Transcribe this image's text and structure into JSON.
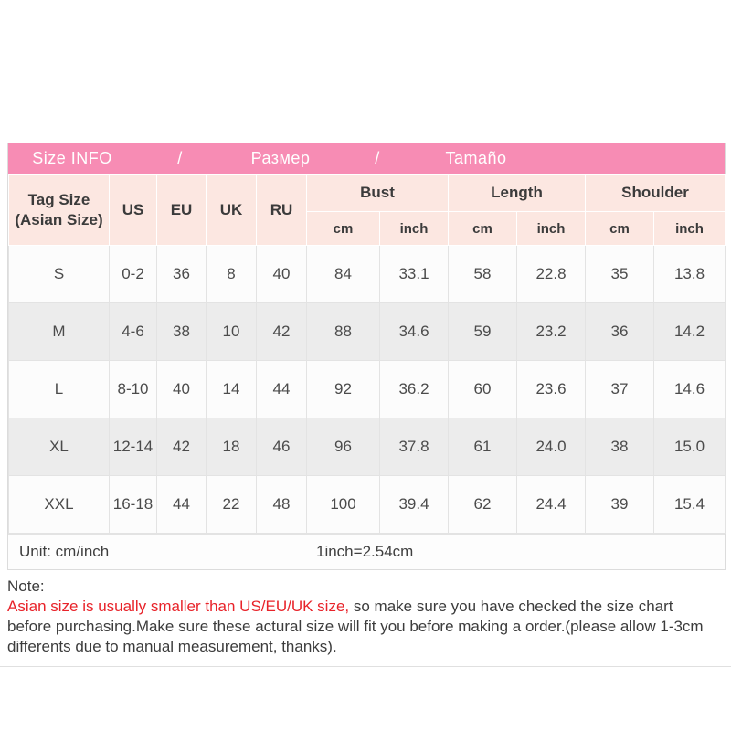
{
  "title_bar": {
    "size_info": "Size INFO",
    "separator_1": "/",
    "razmer": "Размер",
    "separator_2": "/",
    "tamano": "Tamaño"
  },
  "table": {
    "header": {
      "tag_size_line1": "Tag Size",
      "tag_size_line2": "(Asian Size)",
      "us": "US",
      "eu": "EU",
      "uk": "UK",
      "ru": "RU",
      "bust": "Bust",
      "length": "Length",
      "shoulder": "Shoulder",
      "cm": "cm",
      "inch": "inch"
    },
    "rows": [
      {
        "cells": [
          "S",
          "0-2",
          "36",
          "8",
          "40",
          "84",
          "33.1",
          "58",
          "22.8",
          "35",
          "13.8"
        ]
      },
      {
        "cells": [
          "M",
          "4-6",
          "38",
          "10",
          "42",
          "88",
          "34.6",
          "59",
          "23.2",
          "36",
          "14.2"
        ]
      },
      {
        "cells": [
          "L",
          "8-10",
          "40",
          "14",
          "44",
          "92",
          "36.2",
          "60",
          "23.6",
          "37",
          "14.6"
        ]
      },
      {
        "cells": [
          "XL",
          "12-14",
          "42",
          "18",
          "46",
          "96",
          "37.8",
          "61",
          "24.0",
          "38",
          "15.0"
        ]
      },
      {
        "cells": [
          "XXL",
          "16-18",
          "44",
          "22",
          "48",
          "100",
          "39.4",
          "62",
          "24.4",
          "39",
          "15.4"
        ]
      }
    ]
  },
  "footer": {
    "unit_label": "Unit: cm/inch",
    "conversion": "1inch=2.54cm"
  },
  "note": {
    "label": "Note:",
    "highlight": "Asian size is usually smaller than US/EU/UK size,",
    "rest": " so make sure you have checked the size chart before purchasing.Make sure these actural size will fit you before making a order.(please allow 1-3cm differents due to manual measurement, thanks)."
  },
  "colors": {
    "title_bar_pink": "#f78cb4",
    "header_pink": "#fce7e1",
    "alt_row_gray": "#ececec",
    "note_red": "#e8232a"
  }
}
